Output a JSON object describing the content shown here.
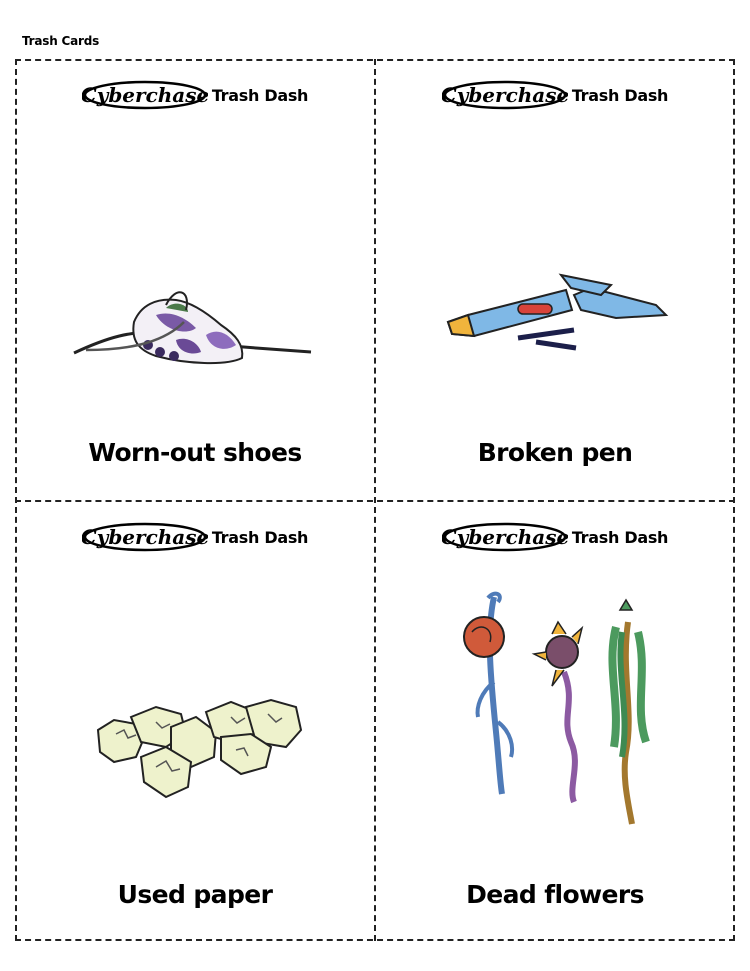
{
  "page": {
    "label": "Trash Cards"
  },
  "brand": {
    "logo_text": "Cyberchase",
    "game_name": "Trash Dash"
  },
  "cards": [
    {
      "title": "Worn-out shoes",
      "icon": "worn-out-shoe-icon"
    },
    {
      "title": "Broken pen",
      "icon": "broken-pen-icon"
    },
    {
      "title": "Used paper",
      "icon": "crumpled-paper-icon"
    },
    {
      "title": "Dead flowers",
      "icon": "dead-flowers-icon"
    }
  ],
  "colors": {
    "border": "#222222",
    "pen_blue": "#7fb8e6",
    "paper": "#eef2cc",
    "shoe_purple": "#7a5aa6"
  }
}
